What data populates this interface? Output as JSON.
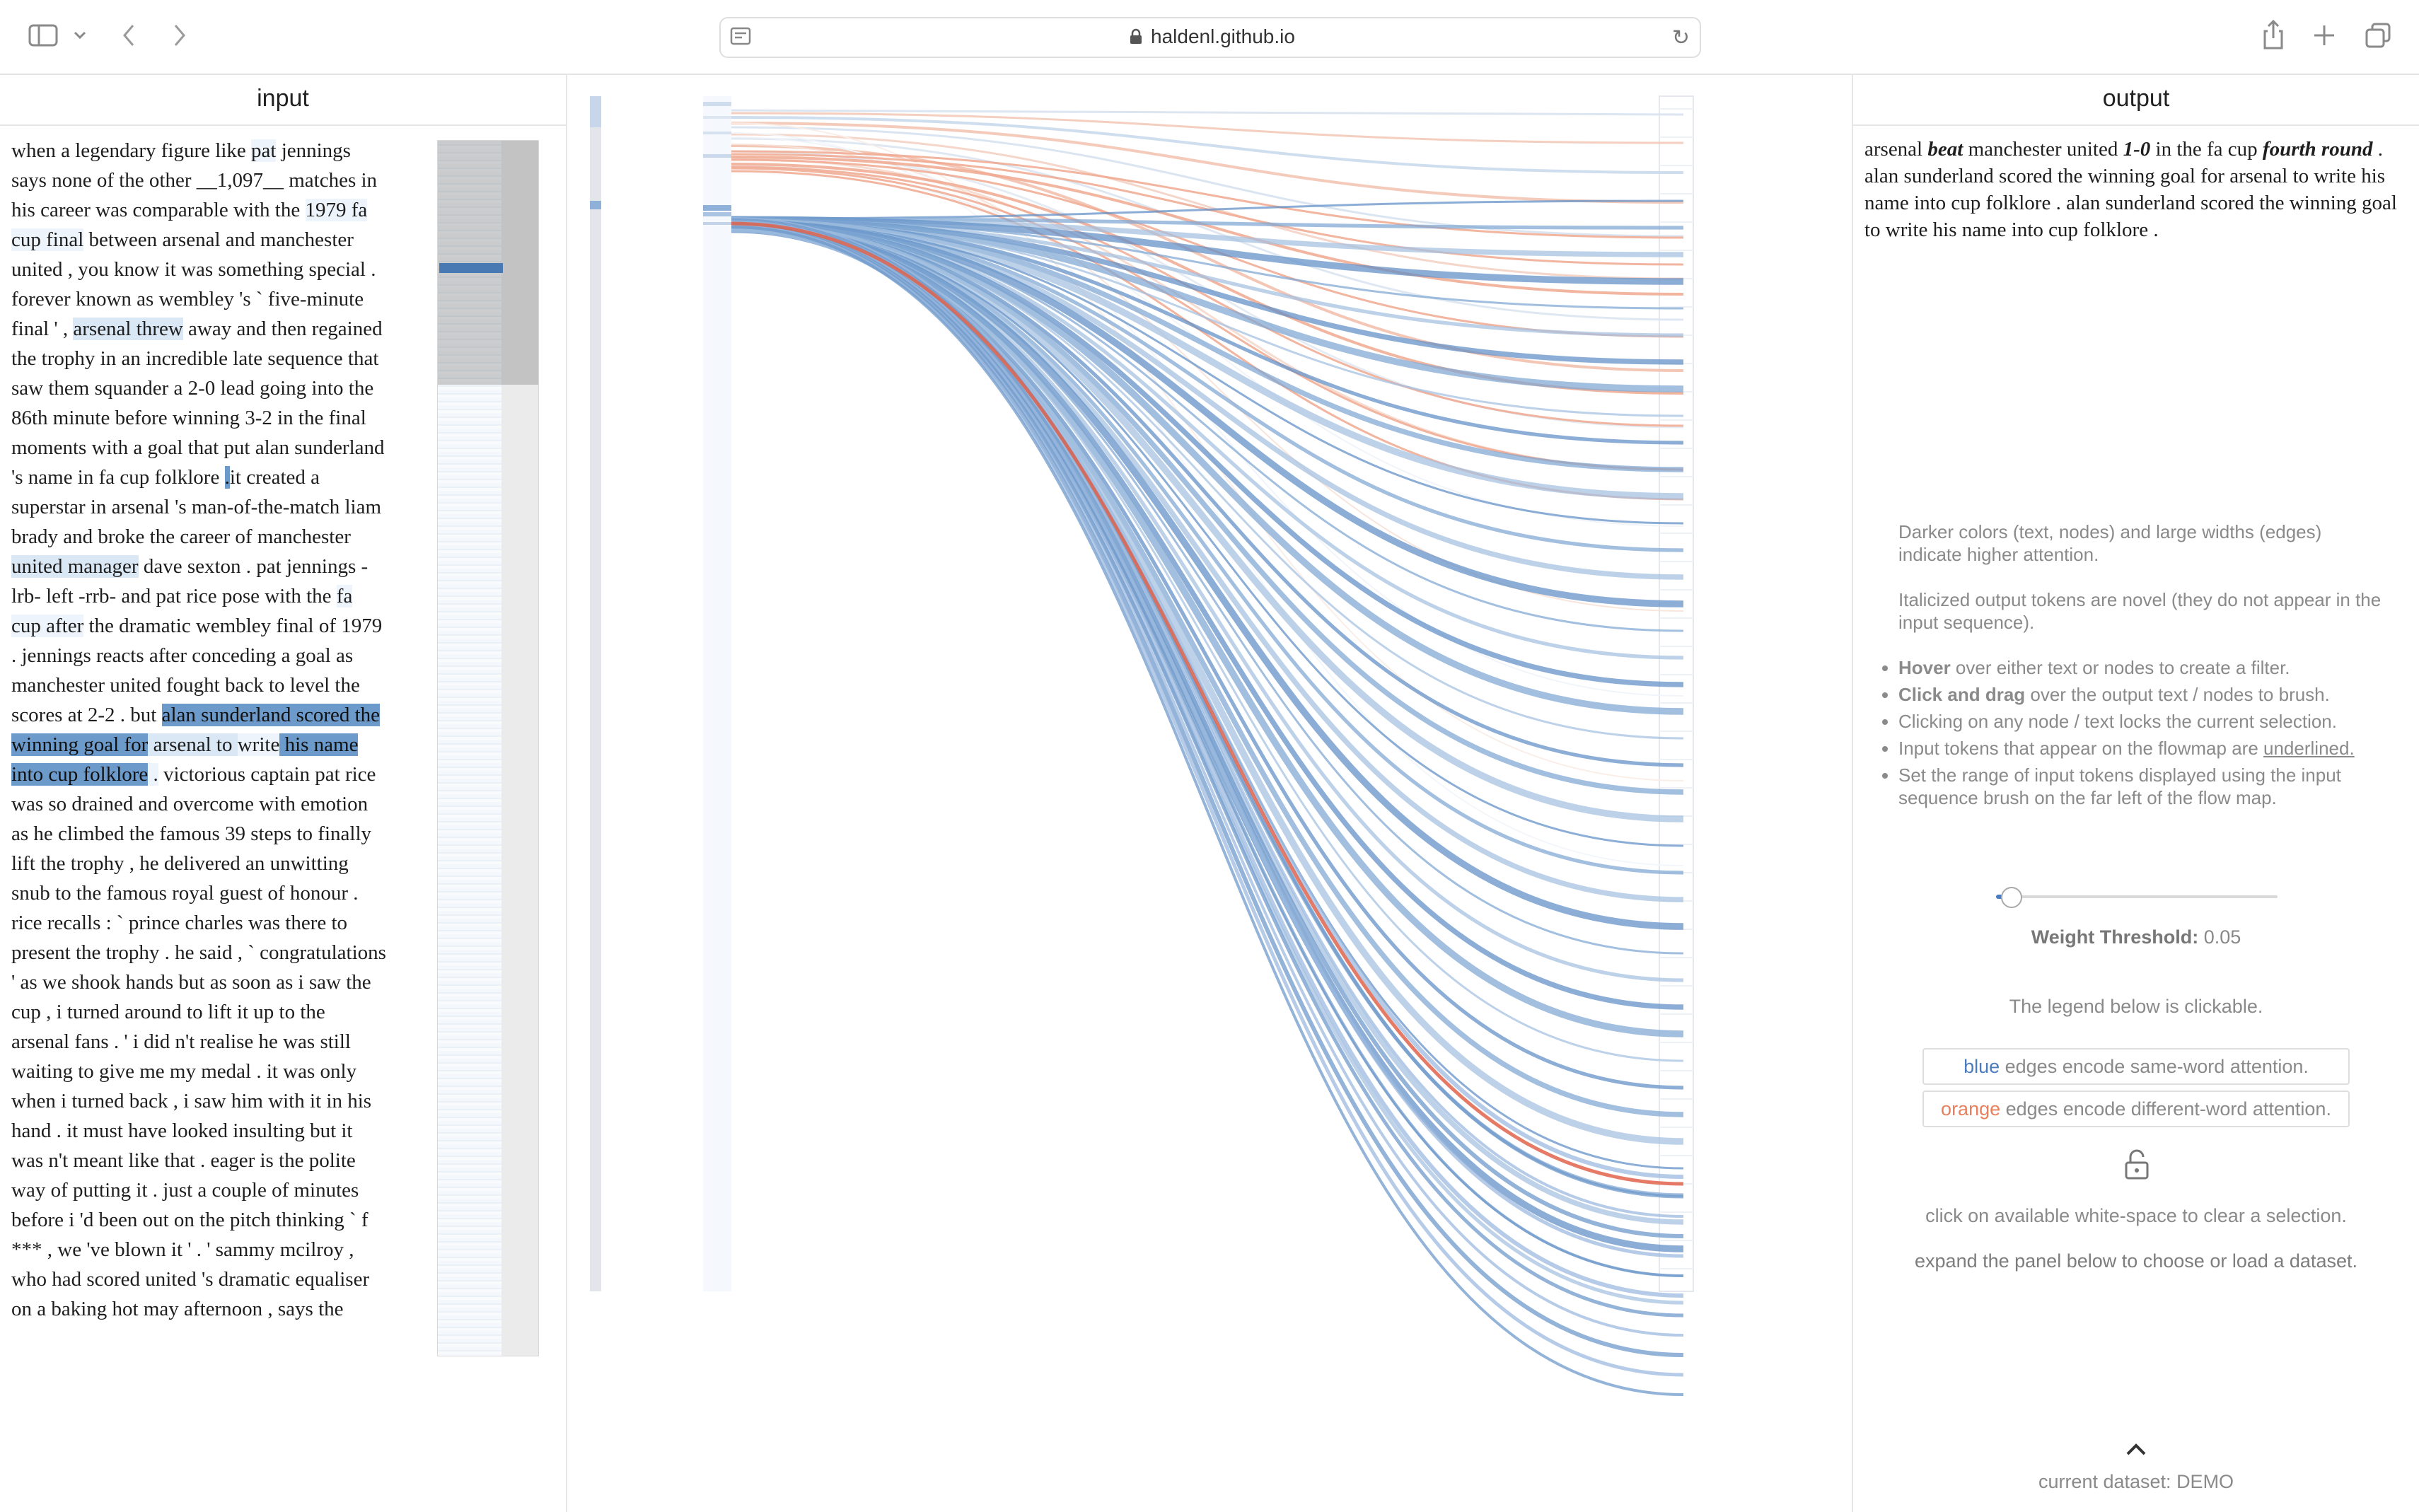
{
  "browser": {
    "url": "haldenl.github.io",
    "icons": [
      "sidebar-icon",
      "chevron-down-icon",
      "back-icon",
      "forward-icon",
      "share-icon",
      "new-tab-icon",
      "tabs-icon",
      "reload-icon",
      "lock-icon"
    ]
  },
  "input_panel": {
    "title": "input",
    "segments": [
      {
        "t": "when a legendary figure like ",
        "h": 0
      },
      {
        "t": "pat",
        "h": 1
      },
      {
        "t": " jennings says none of the other __1,097__ matches in his career was comparable with the ",
        "h": 0
      },
      {
        "t": "1979 fa cup final",
        "h": 1
      },
      {
        "t": " between arsenal and manchester united , you know it was something special . forever known as wembley 's ` five-minute final ' , ",
        "h": 0
      },
      {
        "t": "arsenal threw",
        "h": 2
      },
      {
        "t": " away and then regained the trophy in an incredible late sequence that saw them squander a 2-0 lead going into the 86th minute before winning 3-2 in the final moments with a goal that put alan sunderland 's name in fa cup folklore ",
        "h": 0
      },
      {
        "t": ".",
        "h": 3
      },
      {
        "t": "it created a superstar in arsenal 's man-of-the-match liam brady and broke the career of manchester ",
        "h": 0
      },
      {
        "t": "united manager",
        "h": 2
      },
      {
        "t": " dave sexton . pat jennings -lrb- left -rrb- and pat rice pose with the ",
        "h": 0
      },
      {
        "t": "fa cup after",
        "h": 1
      },
      {
        "t": " the dramatic wembley final of 1979 . jennings reacts after conceding a goal as manchester united fought back to level the scores at 2-2 . but ",
        "h": 0
      },
      {
        "t": "alan sunderland scored the winning goal for",
        "h": 3
      },
      {
        "t": " arsenal to ",
        "h": 2
      },
      {
        "t": "write",
        "h": 1
      },
      {
        "t": " his name into cup folklore",
        "h": 3
      },
      {
        "t": " .",
        "h": 1
      },
      {
        "t": " victorious captain pat rice was so drained and overcome with emotion as he climbed the famous 39 steps to finally lift the trophy , he delivered an unwitting snub to the famous royal guest of honour . rice recalls : ` prince charles was there to present the trophy . he said , ` congratulations ' as we shook hands but as soon as i saw the cup , i turned around to lift it up to the arsenal fans . ' i did n't realise he was still waiting to give me my medal . it was only when i turned back , i saw him with it in his hand . it must have looked insulting but it was n't meant like that . eager is the polite way of putting it . just a couple of minutes before i 'd been out on the pitch thinking ` f *** , we 've blown it ' . ' sammy mcilroy , who had scored united 's dramatic equaliser on a baking hot may afternoon , says the",
        "h": 0
      }
    ]
  },
  "output_panel": {
    "title": "output",
    "tokens": [
      {
        "t": "arsenal ",
        "n": false
      },
      {
        "t": "beat",
        "n": true
      },
      {
        "t": " manchester united ",
        "n": false
      },
      {
        "t": "1-0",
        "n": true
      },
      {
        "t": " in the fa cup ",
        "n": false
      },
      {
        "t": "fourth round",
        "n": true
      },
      {
        "t": " . alan sunderland scored the winning goal for arsenal to write his name into cup folklore . alan sunderland scored the winning goal to write his name into cup folklore .",
        "n": false
      }
    ]
  },
  "help": {
    "p1": "Darker colors (text, nodes) and large widths (edges) indicate higher attention.",
    "p2": "Italicized output tokens are novel (they do not appear in the input sequence).",
    "b1_bold": "Hover",
    "b1_rest": " over either text or nodes to create a filter.",
    "b2_bold": "Click and drag",
    "b2_rest": " over the output text / nodes to brush.",
    "b3": "Clicking on any node / text locks the current selection.",
    "b4_a": "Input tokens that appear on the flowmap are ",
    "b4_u": "underlined.",
    "b5": "Set the range of input tokens displayed using the input sequence brush on the far left of the flow map."
  },
  "threshold": {
    "label": "Weight Threshold:",
    "value": "0.05",
    "fraction": 0.05
  },
  "legend": {
    "note": "The legend below is clickable.",
    "blue_word": "blue",
    "blue_rest": " edges encode same-word attention.",
    "blue_color": "#4a7cc0",
    "orange_word": "orange",
    "orange_rest": " edges encode different-word attention.",
    "orange_color": "#e8805e"
  },
  "notes": {
    "clear": "click on available white-space to clear a selection.",
    "expand": "expand the panel below to choose or load a dataset."
  },
  "dataset": {
    "label": "current dataset:",
    "value": "DEMO"
  }
}
